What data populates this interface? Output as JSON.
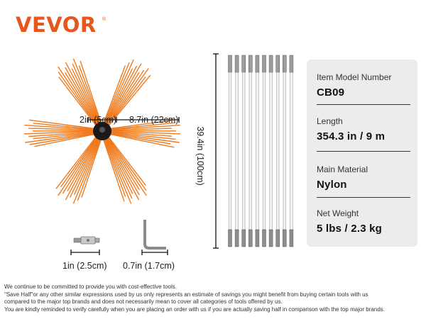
{
  "brand": {
    "name": "VEVOR",
    "trademark": "®"
  },
  "dimensions": {
    "hub_diameter": "2in (5cm)",
    "bristle_length": "8.7in (22cm)",
    "rod_length": "39.4in (100cm)",
    "adapter_length": "1in (2.5cm)",
    "wrench_size": "0.7in (1.7cm)"
  },
  "rods": {
    "count": 10
  },
  "specs": [
    {
      "label": "Item Model Number",
      "value": "CB09"
    },
    {
      "label": "Length",
      "value": "354.3 in / 9 m"
    },
    {
      "label": "Main Material",
      "value": "Nylon"
    },
    {
      "label": "Net Weight",
      "value": "5 lbs / 2.3 kg"
    }
  ],
  "disclaimer": [
    "We continue to be committed to provide you with cost-effective tools.",
    "\"Save Half\"or any other similar expressions used by us only represents an estimate of savings you might benefit from buying certain tools with us",
    "compared to the major top brands and does not necessarily mean to cover all categories of tools offered by us.",
    "You are kindly reminded to verify carefully when you are placing an order with us if you are actually saving half in comparison with the top major brands."
  ],
  "colors": {
    "brand_orange": "#e8561c",
    "bristle_orange": "#f07a1e",
    "card_bg": "#ececec"
  }
}
